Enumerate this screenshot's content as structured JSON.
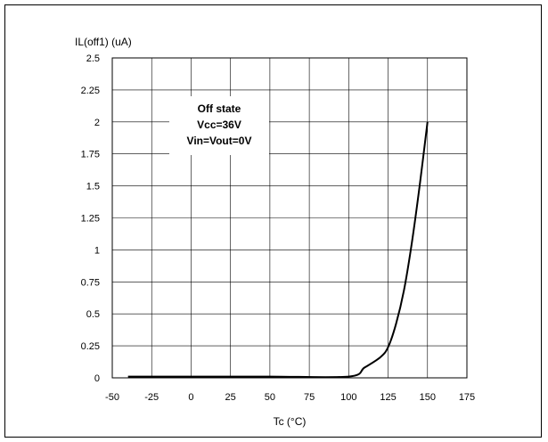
{
  "chart_data": {
    "type": "line",
    "xlabel": "Tc (°C)",
    "ylabel": "IL(off1) (uA)",
    "xlim": [
      -50,
      175
    ],
    "ylim": [
      0,
      2.5
    ],
    "xticks": [
      -50,
      -25,
      0,
      25,
      50,
      75,
      100,
      125,
      150,
      175
    ],
    "yticks": [
      0,
      0.25,
      0.5,
      0.75,
      1,
      1.25,
      1.5,
      1.75,
      2,
      2.25,
      2.5
    ],
    "xtick_labels": [
      "-50",
      "-25",
      "0",
      "25",
      "50",
      "75",
      "100",
      "125",
      "150",
      "175"
    ],
    "ytick_labels": [
      "0",
      "0.25",
      "0.5",
      "0.75",
      "1",
      "1.25",
      "1.5",
      "1.75",
      "2",
      "2.25",
      "2.5"
    ],
    "grid": true,
    "annotations": [
      "Off state",
      "Vcc=36V",
      "Vin=Vout=0V"
    ],
    "series": [
      {
        "color": "#000000",
        "x": [
          -40,
          0,
          50,
          100,
          110,
          120,
          125,
          130,
          135,
          140,
          145,
          150
        ],
        "y": [
          0.01,
          0.01,
          0.01,
          0.01,
          0.08,
          0.16,
          0.24,
          0.42,
          0.68,
          1.05,
          1.5,
          2.0
        ]
      }
    ]
  }
}
